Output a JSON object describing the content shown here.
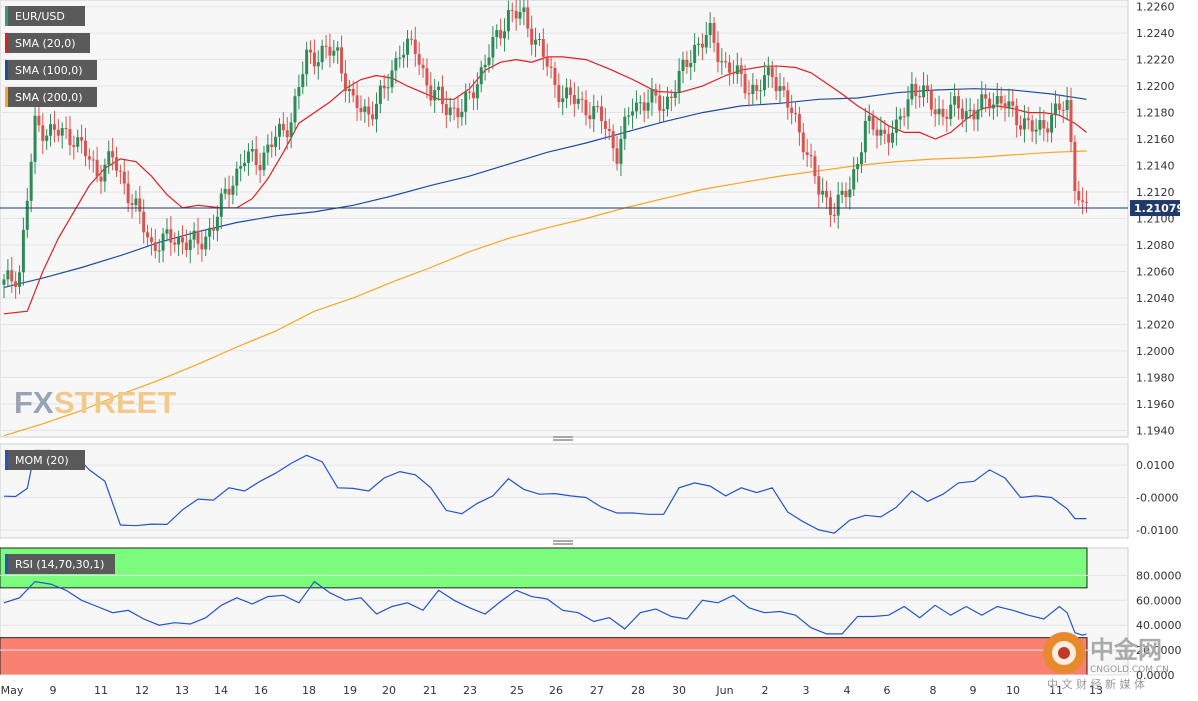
{
  "legend": {
    "pair": "EUR/USD",
    "sma20": "SMA (20,0)",
    "sma100": "SMA (100,0)",
    "sma200": "SMA (200,0)",
    "mom": "MOM (20)",
    "rsi": "RSI (14,70,30,1)"
  },
  "colors": {
    "up": "#2e8b57",
    "down": "#d9534f",
    "sma20": "#e31e1e",
    "sma100": "#1f4e9e",
    "sma200": "#f5a623",
    "indicator": "#2255cc",
    "rsi_overbought": "#7cfc7c",
    "rsi_oversold": "#fa8072",
    "legend_bg": "#5a5a5a"
  },
  "watermark": {
    "brand_fx": "FX",
    "brand_street": "STREET",
    "cn_title": "中金网",
    "cn_url": "CNGOLD.COM.CN",
    "cn_sub": "中 文 财 经 新 媒 体"
  },
  "chart_data": [
    {
      "type": "candlestick",
      "title": "EUR/USD",
      "ylim": [
        1.1935,
        1.2265
      ],
      "y_ticks": [
        "1.2260",
        "1.2240",
        "1.2220",
        "1.2200",
        "1.2180",
        "1.2160",
        "1.2140",
        "1.2120",
        "1.2100",
        "1.2080",
        "1.2060",
        "1.2040",
        "1.2020",
        "1.2000",
        "1.1980",
        "1.1960",
        "1.1940"
      ],
      "x_ticks": [
        "May",
        "9",
        "11",
        "12",
        "13",
        "14",
        "16",
        "18",
        "19",
        "20",
        "21",
        "23",
        "25",
        "26",
        "27",
        "28",
        "30",
        "Jun",
        "2",
        "3",
        "4",
        "6",
        "8",
        "9",
        "10",
        "11",
        "13"
      ],
      "current_price": "1.21079",
      "close_anchors": [
        [
          0,
          1.205
        ],
        [
          4,
          1.206
        ],
        [
          8,
          1.217
        ],
        [
          13,
          1.2165
        ],
        [
          18,
          1.2162
        ],
        [
          24,
          1.2135
        ],
        [
          28,
          1.2145
        ],
        [
          32,
          1.212
        ],
        [
          38,
          1.208
        ],
        [
          44,
          1.2085
        ],
        [
          50,
          1.208
        ],
        [
          54,
          1.2095
        ],
        [
          58,
          1.2125
        ],
        [
          62,
          1.2145
        ],
        [
          66,
          1.2145
        ],
        [
          70,
          1.216
        ],
        [
          74,
          1.2175
        ],
        [
          78,
          1.2222
        ],
        [
          82,
          1.2225
        ],
        [
          86,
          1.2225
        ],
        [
          90,
          1.2185
        ],
        [
          94,
          1.218
        ],
        [
          98,
          1.2195
        ],
        [
          102,
          1.2228
        ],
        [
          106,
          1.2228
        ],
        [
          110,
          1.2195
        ],
        [
          114,
          1.2185
        ],
        [
          118,
          1.218
        ],
        [
          122,
          1.2205
        ],
        [
          126,
          1.223
        ],
        [
          130,
          1.2255
        ],
        [
          134,
          1.2252
        ],
        [
          138,
          1.223
        ],
        [
          142,
          1.22
        ],
        [
          146,
          1.219
        ],
        [
          150,
          1.2185
        ],
        [
          154,
          1.2175
        ],
        [
          158,
          1.215
        ],
        [
          162,
          1.2185
        ],
        [
          166,
          1.219
        ],
        [
          170,
          1.2185
        ],
        [
          174,
          1.2205
        ],
        [
          178,
          1.223
        ],
        [
          182,
          1.2238
        ],
        [
          186,
          1.2215
        ],
        [
          190,
          1.2205
        ],
        [
          194,
          1.2195
        ],
        [
          198,
          1.2212
        ],
        [
          202,
          1.2185
        ],
        [
          206,
          1.216
        ],
        [
          210,
          1.212
        ],
        [
          214,
          1.2108
        ],
        [
          218,
          1.2122
        ],
        [
          222,
          1.217
        ],
        [
          226,
          1.2165
        ],
        [
          230,
          1.2165
        ],
        [
          234,
          1.22
        ],
        [
          238,
          1.219
        ],
        [
          242,
          1.2178
        ],
        [
          246,
          1.2185
        ],
        [
          250,
          1.2178
        ],
        [
          254,
          1.2192
        ],
        [
          258,
          1.2185
        ],
        [
          262,
          1.2175
        ],
        [
          266,
          1.2165
        ],
        [
          270,
          1.2178
        ],
        [
          274,
          1.2185
        ],
        [
          276,
          1.213
        ],
        [
          278,
          1.2105
        ],
        [
          279,
          1.2108
        ]
      ],
      "series": [
        {
          "name": "SMA (20,0)",
          "x": [
            0,
            6,
            10,
            14,
            18,
            22,
            26,
            30,
            34,
            38,
            42,
            46,
            50,
            56,
            60,
            64,
            68,
            72,
            76,
            80,
            84,
            88,
            92,
            96,
            100,
            104,
            108,
            112,
            116,
            120,
            124,
            128,
            132,
            136,
            140,
            144,
            150,
            156,
            162,
            168,
            174,
            180,
            186,
            190,
            196,
            200,
            204,
            208,
            212,
            216,
            220,
            224,
            228,
            232,
            236,
            240,
            244,
            248,
            252,
            256,
            260,
            264,
            268,
            272,
            276,
            279
          ],
          "y": [
            1.2028,
            1.203,
            1.206,
            1.2085,
            1.2105,
            1.2125,
            1.2138,
            1.2145,
            1.2143,
            1.2132,
            1.2118,
            1.2108,
            1.211,
            1.2108,
            1.2108,
            1.2115,
            1.213,
            1.215,
            1.2172,
            1.218,
            1.2188,
            1.2198,
            1.2205,
            1.2208,
            1.2206,
            1.22,
            1.2195,
            1.219,
            1.219,
            1.2198,
            1.2212,
            1.2218,
            1.222,
            1.2218,
            1.2222,
            1.2222,
            1.222,
            1.2213,
            1.2205,
            1.2196,
            1.2195,
            1.22,
            1.2208,
            1.2212,
            1.2215,
            1.2215,
            1.2214,
            1.221,
            1.2202,
            1.2194,
            1.2185,
            1.2178,
            1.217,
            1.2165,
            1.2165,
            1.216,
            1.2165,
            1.2175,
            1.2183,
            1.2185,
            1.2183,
            1.218,
            1.218,
            1.2178,
            1.2172,
            1.2165
          ]
        },
        {
          "name": "SMA (100,0)",
          "x": [
            0,
            10,
            20,
            30,
            40,
            50,
            60,
            70,
            80,
            90,
            100,
            110,
            120,
            130,
            140,
            150,
            160,
            170,
            180,
            190,
            200,
            210,
            220,
            230,
            240,
            250,
            260,
            270,
            279
          ],
          "y": [
            1.2048,
            1.2055,
            1.2063,
            1.2072,
            1.2082,
            1.209,
            1.2097,
            1.2102,
            1.2105,
            1.211,
            1.2117,
            1.2125,
            1.2132,
            1.2141,
            1.215,
            1.2157,
            1.2165,
            1.2173,
            1.218,
            1.2185,
            1.2187,
            1.219,
            1.2191,
            1.2195,
            1.2197,
            1.2198,
            1.2197,
            1.2194,
            1.219
          ]
        },
        {
          "name": "SMA (200,0)",
          "x": [
            0,
            10,
            20,
            30,
            40,
            50,
            60,
            70,
            80,
            90,
            100,
            110,
            120,
            130,
            140,
            150,
            160,
            170,
            180,
            190,
            200,
            210,
            220,
            230,
            240,
            250,
            260,
            270,
            279
          ],
          "y": [
            1.1936,
            1.1945,
            1.1955,
            1.1967,
            1.1978,
            1.199,
            1.2003,
            1.2015,
            1.203,
            1.204,
            1.2052,
            1.2063,
            1.2075,
            1.2085,
            1.2093,
            1.21,
            1.2108,
            1.2115,
            1.2122,
            1.2127,
            1.2132,
            1.2136,
            1.214,
            1.2143,
            1.2145,
            1.2146,
            1.2148,
            1.215,
            1.2151
          ]
        }
      ]
    },
    {
      "type": "line",
      "title": "MOM (20)",
      "ylim": [
        -0.0125,
        0.0165
      ],
      "y_ticks": [
        "0.0100",
        "-0.0000",
        "-0.0100"
      ],
      "series": [
        {
          "name": "MOM (20)",
          "x": [
            0,
            3,
            6,
            8,
            10,
            12,
            14,
            18,
            22,
            26,
            30,
            34,
            38,
            42,
            46,
            50,
            54,
            58,
            62,
            66,
            70,
            74,
            78,
            82,
            86,
            90,
            94,
            98,
            102,
            106,
            110,
            114,
            118,
            122,
            126,
            130,
            134,
            138,
            142,
            146,
            150,
            154,
            158,
            162,
            166,
            170,
            174,
            178,
            182,
            186,
            190,
            194,
            198,
            202,
            206,
            210,
            214,
            218,
            222,
            226,
            230,
            234,
            238,
            242,
            246,
            250,
            254,
            258,
            262,
            266,
            270,
            274,
            276,
            278,
            279
          ],
          "y": [
            0.0004,
            0.0003,
            0.0028,
            0.0145,
            0.0145,
            0.0145,
            0.014,
            0.0135,
            0.0085,
            0.005,
            -0.0085,
            -0.0087,
            -0.0082,
            -0.0083,
            -0.0038,
            -0.0005,
            -0.0008,
            0.003,
            0.002,
            0.005,
            0.0075,
            0.0105,
            0.013,
            0.011,
            0.003,
            0.0028,
            0.002,
            0.006,
            0.008,
            0.007,
            0.003,
            -0.004,
            -0.005,
            -0.0018,
            0.0005,
            0.0058,
            0.0025,
            0.001,
            0.0012,
            0.0005,
            0.0,
            -0.003,
            -0.0048,
            -0.0048,
            -0.0052,
            -0.0052,
            0.003,
            0.0045,
            0.0035,
            0.0005,
            0.003,
            0.0015,
            0.003,
            -0.0045,
            -0.0075,
            -0.01,
            -0.011,
            -0.007,
            -0.0055,
            -0.006,
            -0.003,
            0.002,
            -0.0012,
            0.001,
            0.0045,
            0.005,
            0.0085,
            0.006,
            0.0,
            0.0005,
            0.0,
            -0.0035,
            -0.0065,
            -0.0065,
            -0.0065
          ]
        }
      ]
    },
    {
      "type": "line",
      "title": "RSI (14,70,30,1)",
      "ylim": [
        0,
        102
      ],
      "y_ticks": [
        "80.0000",
        "60.0000",
        "40.0000",
        "20.0000",
        "0.0000"
      ],
      "bands": {
        "overbought": 70,
        "oversold": 30
      },
      "series": [
        {
          "name": "RSI (14,70,30,1)",
          "x": [
            0,
            4,
            8,
            12,
            16,
            20,
            24,
            28,
            32,
            36,
            40,
            44,
            48,
            52,
            56,
            60,
            64,
            68,
            72,
            76,
            80,
            84,
            88,
            92,
            96,
            100,
            104,
            108,
            112,
            116,
            120,
            124,
            128,
            132,
            136,
            140,
            144,
            148,
            152,
            156,
            160,
            164,
            168,
            172,
            176,
            180,
            184,
            188,
            192,
            196,
            200,
            204,
            208,
            212,
            216,
            220,
            224,
            228,
            232,
            236,
            240,
            244,
            248,
            252,
            256,
            260,
            264,
            268,
            272,
            274,
            276,
            278,
            279
          ],
          "y": [
            58,
            62,
            75,
            73,
            68,
            60,
            55,
            50,
            52,
            45,
            40,
            42,
            41,
            46,
            56,
            62,
            57,
            63,
            64,
            58,
            75,
            66,
            60,
            62,
            49,
            55,
            58,
            52,
            68,
            60,
            54,
            49,
            59,
            68,
            63,
            61,
            52,
            50,
            43,
            46,
            37,
            50,
            53,
            47,
            45,
            60,
            58,
            64,
            54,
            50,
            51,
            48,
            38,
            33,
            33,
            47,
            47,
            48,
            55,
            46,
            56,
            48,
            55,
            48,
            55,
            52,
            48,
            45,
            55,
            50,
            34,
            32,
            33
          ]
        }
      ]
    }
  ]
}
